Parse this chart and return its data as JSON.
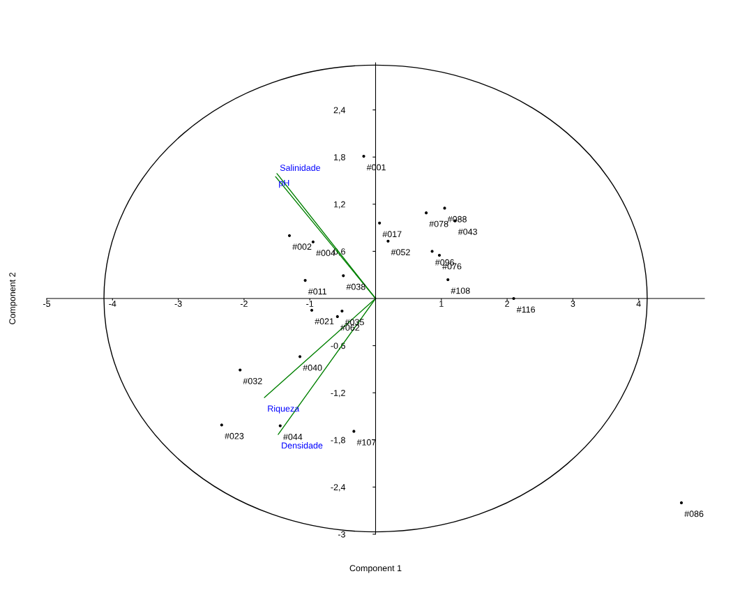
{
  "chart_data": {
    "type": "scatter",
    "xlabel": "Component 1",
    "ylabel": "Component 2",
    "xlim": [
      -5,
      5
    ],
    "ylim": [
      -3,
      3
    ],
    "xticks": [
      -5,
      -4,
      -3,
      -2,
      -1,
      1,
      2,
      3,
      4
    ],
    "yticks": [
      {
        "value": -3,
        "label": "-3"
      },
      {
        "value": -2.4,
        "label": "-2,4"
      },
      {
        "value": -1.8,
        "label": "-1,8"
      },
      {
        "value": -1.2,
        "label": "-1,2"
      },
      {
        "value": -0.6,
        "label": "-0,6"
      },
      {
        "value": 0.6,
        "label": "0,6"
      },
      {
        "value": 1.2,
        "label": "1,2"
      },
      {
        "value": 1.8,
        "label": "1,8"
      },
      {
        "value": 2.4,
        "label": "2,4"
      }
    ],
    "grid": false,
    "legend": false,
    "series": [
      {
        "marker": "circle",
        "color": "#000000",
        "x": [
          -0.18,
          1.05,
          0.77,
          1.21,
          0.06,
          0.19,
          -1.31,
          -0.95,
          0.86,
          0.97,
          1.1,
          2.1,
          -1.07,
          -0.49,
          -0.97,
          -0.51,
          -0.58,
          -1.15,
          -2.06,
          -2.34,
          -1.45,
          -0.33,
          4.65
        ],
        "values": [
          1.81,
          1.15,
          1.09,
          0.99,
          0.96,
          0.73,
          0.8,
          0.72,
          0.6,
          0.55,
          0.24,
          0.0,
          0.23,
          0.29,
          -0.15,
          -0.16,
          -0.23,
          -0.74,
          -0.91,
          -1.61,
          -1.62,
          -1.69,
          -2.6
        ]
      },
      {
        "type": "line",
        "color": "#008000",
        "x": [
          0,
          -1.5
        ],
        "values": [
          0,
          1.59
        ]
      },
      {
        "type": "line",
        "color": "#008000",
        "x": [
          0,
          -1.52
        ],
        "values": [
          0,
          1.55
        ]
      },
      {
        "type": "line",
        "color": "#008000",
        "x": [
          0,
          -1.69
        ],
        "values": [
          0,
          -1.26
        ]
      },
      {
        "type": "line",
        "color": "#008000",
        "x": [
          0,
          -1.48
        ],
        "values": [
          0,
          -1.73
        ]
      }
    ],
    "annotations": [
      {
        "text": "#001",
        "x": -0.18,
        "y": 1.81
      },
      {
        "text": "#088",
        "x": 1.05,
        "y": 1.15
      },
      {
        "text": "#078",
        "x": 0.77,
        "y": 1.09
      },
      {
        "text": "#043",
        "x": 1.21,
        "y": 0.99
      },
      {
        "text": "#017",
        "x": 0.06,
        "y": 0.96
      },
      {
        "text": "#052",
        "x": 0.19,
        "y": 0.73
      },
      {
        "text": "#002",
        "x": -1.31,
        "y": 0.8
      },
      {
        "text": "#004",
        "x": -0.95,
        "y": 0.72
      },
      {
        "text": "#096",
        "x": 0.86,
        "y": 0.6
      },
      {
        "text": "#076",
        "x": 0.97,
        "y": 0.55
      },
      {
        "text": "#108",
        "x": 1.1,
        "y": 0.24
      },
      {
        "text": "#116",
        "x": 2.1,
        "y": 0.0
      },
      {
        "text": "#011",
        "x": -1.07,
        "y": 0.23
      },
      {
        "text": "#038",
        "x": -0.49,
        "y": 0.29
      },
      {
        "text": "#021",
        "x": -0.97,
        "y": -0.15
      },
      {
        "text": "#035",
        "x": -0.51,
        "y": -0.16
      },
      {
        "text": "#062",
        "x": -0.58,
        "y": -0.23
      },
      {
        "text": "#040",
        "x": -1.15,
        "y": -0.74
      },
      {
        "text": "#032",
        "x": -2.06,
        "y": -0.91
      },
      {
        "text": "#023",
        "x": -2.34,
        "y": -1.61
      },
      {
        "text": "#044",
        "x": -1.45,
        "y": -1.62
      },
      {
        "text": "#107",
        "x": -0.33,
        "y": -1.69
      },
      {
        "text": "#086",
        "x": 4.65,
        "y": -2.6
      },
      {
        "text": "Salinidade",
        "x": -1.5,
        "y": 1.59
      },
      {
        "text": "pH",
        "x": -1.52,
        "y": 1.55
      },
      {
        "text": "Riqueza",
        "x": -1.69,
        "y": -1.26
      },
      {
        "text": "Densidade",
        "x": -1.48,
        "y": -1.73
      }
    ]
  }
}
